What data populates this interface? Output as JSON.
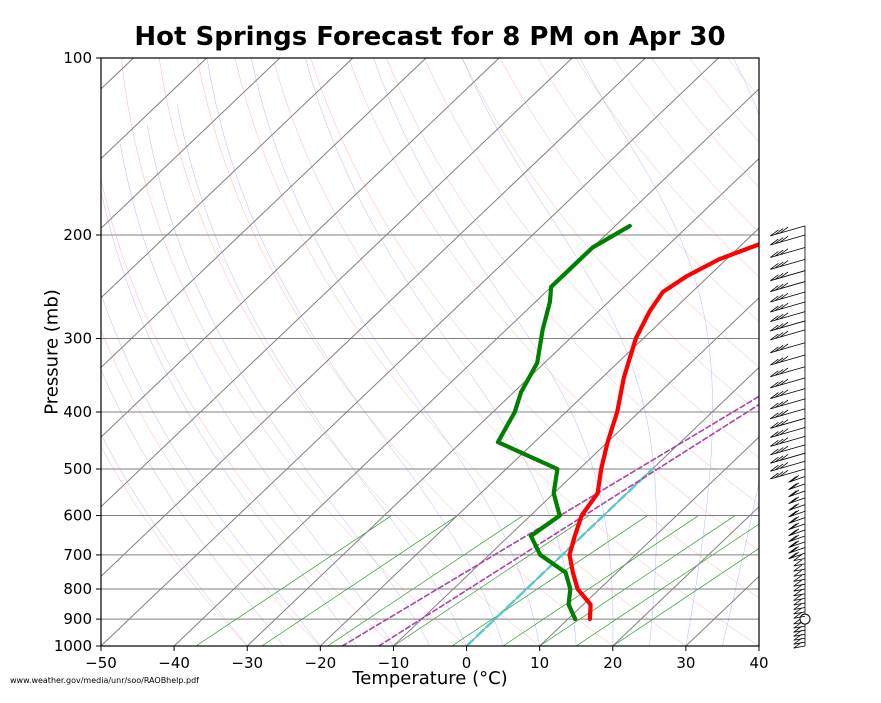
{
  "chart_data": {
    "type": "skew-t",
    "title": "Hot Springs Forecast for 8 PM on Apr 30",
    "xlabel": "Temperature (°C)",
    "ylabel": "Pressure (mb)",
    "xlim": [
      -50,
      40
    ],
    "ylim": [
      1000,
      100
    ],
    "y_scale": "log",
    "x_ticks": [
      "−50",
      "−40",
      "−30",
      "−20",
      "−10",
      "0",
      "10",
      "20",
      "30",
      "40"
    ],
    "y_ticks": [
      "1000",
      "900",
      "800",
      "700",
      "600",
      "500",
      "400",
      "300",
      "200",
      "100"
    ],
    "grid": true,
    "source_note": "www.weather.gov/media/unr/soo/RAOBhelp.pdf",
    "temperature_profile": {
      "color": "#ff0000",
      "points": [
        [
          13,
          900
        ],
        [
          11,
          850
        ],
        [
          7,
          800
        ],
        [
          4,
          750
        ],
        [
          1,
          700
        ],
        [
          -1,
          650
        ],
        [
          -3,
          600
        ],
        [
          -4,
          550
        ],
        [
          -7,
          500
        ],
        [
          -10,
          450
        ],
        [
          -13,
          400
        ],
        [
          -17,
          350
        ],
        [
          -21,
          300
        ],
        [
          -23,
          270
        ],
        [
          -24,
          250
        ],
        [
          -23,
          235
        ],
        [
          -21,
          220
        ],
        [
          -17,
          205
        ],
        [
          -13,
          193
        ]
      ]
    },
    "dewpoint_profile": {
      "color": "#008000",
      "points": [
        [
          11,
          900
        ],
        [
          8,
          850
        ],
        [
          6,
          800
        ],
        [
          3,
          750
        ],
        [
          -3,
          700
        ],
        [
          -7,
          650
        ],
        [
          -6,
          600
        ],
        [
          -10,
          550
        ],
        [
          -13,
          500
        ],
        [
          -25,
          450
        ],
        [
          -27,
          400
        ],
        [
          -29,
          370
        ],
        [
          -31,
          330
        ],
        [
          -35,
          290
        ],
        [
          -38,
          260
        ],
        [
          -40,
          245
        ],
        [
          -40,
          230
        ],
        [
          -40,
          220
        ],
        [
          -40,
          210
        ],
        [
          -38,
          193
        ]
      ]
    },
    "parcel_path_1": {
      "color": "#aa44aa",
      "points": [
        [
          -17,
          1000
        ],
        [
          8,
          315
        ]
      ]
    },
    "parcel_path_2": {
      "color": "#aa44aa",
      "points": [
        [
          -12,
          1000
        ],
        [
          7,
          355
        ]
      ]
    },
    "highlight_line": {
      "color": "#55cccc",
      "points": [
        [
          0,
          1000
        ],
        [
          0,
          500
        ]
      ]
    },
    "skewed_isotherms_c": [
      -150,
      -140,
      -130,
      -120,
      -110,
      -100,
      -90,
      -80,
      -70,
      -60,
      -50,
      -40,
      -30,
      -20,
      -10,
      0,
      10,
      20,
      30,
      40
    ],
    "mixing_ratio_lines_c": [
      -37,
      -28,
      -19,
      -10,
      -2,
      5,
      10,
      15,
      20
    ],
    "wind_profile": {
      "pressures": [
        1000,
        985,
        970,
        955,
        940,
        925,
        910,
        900,
        890,
        875,
        860,
        845,
        830,
        815,
        800,
        785,
        770,
        755,
        740,
        725,
        710,
        695,
        680,
        665,
        650,
        635,
        620,
        605,
        590,
        575,
        560,
        545,
        530,
        515,
        500,
        485,
        470,
        455,
        440,
        425,
        410,
        395,
        380,
        365,
        350,
        335,
        320,
        305,
        290,
        280,
        270,
        260,
        250,
        240,
        230,
        220,
        210,
        200,
        193
      ],
      "calm_pressure": 900
    }
  }
}
